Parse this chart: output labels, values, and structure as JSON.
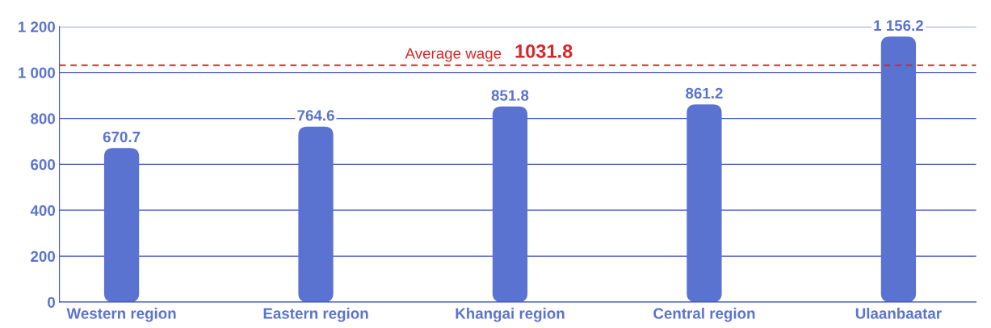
{
  "chart_data": {
    "type": "bar",
    "categories": [
      "Western region",
      "Eastern region",
      "Khangai region",
      "Central region",
      "Ulaanbaatar"
    ],
    "values": [
      670.7,
      764.6,
      851.8,
      861.2,
      1156.2
    ],
    "value_labels": [
      "670.7",
      "764.6",
      "851.8",
      "861.2",
      "1 156.2"
    ],
    "color": "#5b73d0",
    "ylim": [
      0,
      1200
    ],
    "yticks": [
      0,
      200,
      400,
      600,
      800,
      {
        "value": 1000,
        "label": "1 000"
      },
      {
        "value": 1200,
        "label": "1 200"
      }
    ],
    "grid": "y",
    "ref_lines": [
      {
        "axis": "y",
        "value": 1031.8,
        "label": "Average wage",
        "color": "#d62728",
        "line_style": "dashed"
      }
    ],
    "annotations": [
      {
        "text": "1031.8",
        "y": 1031.8
      }
    ]
  }
}
